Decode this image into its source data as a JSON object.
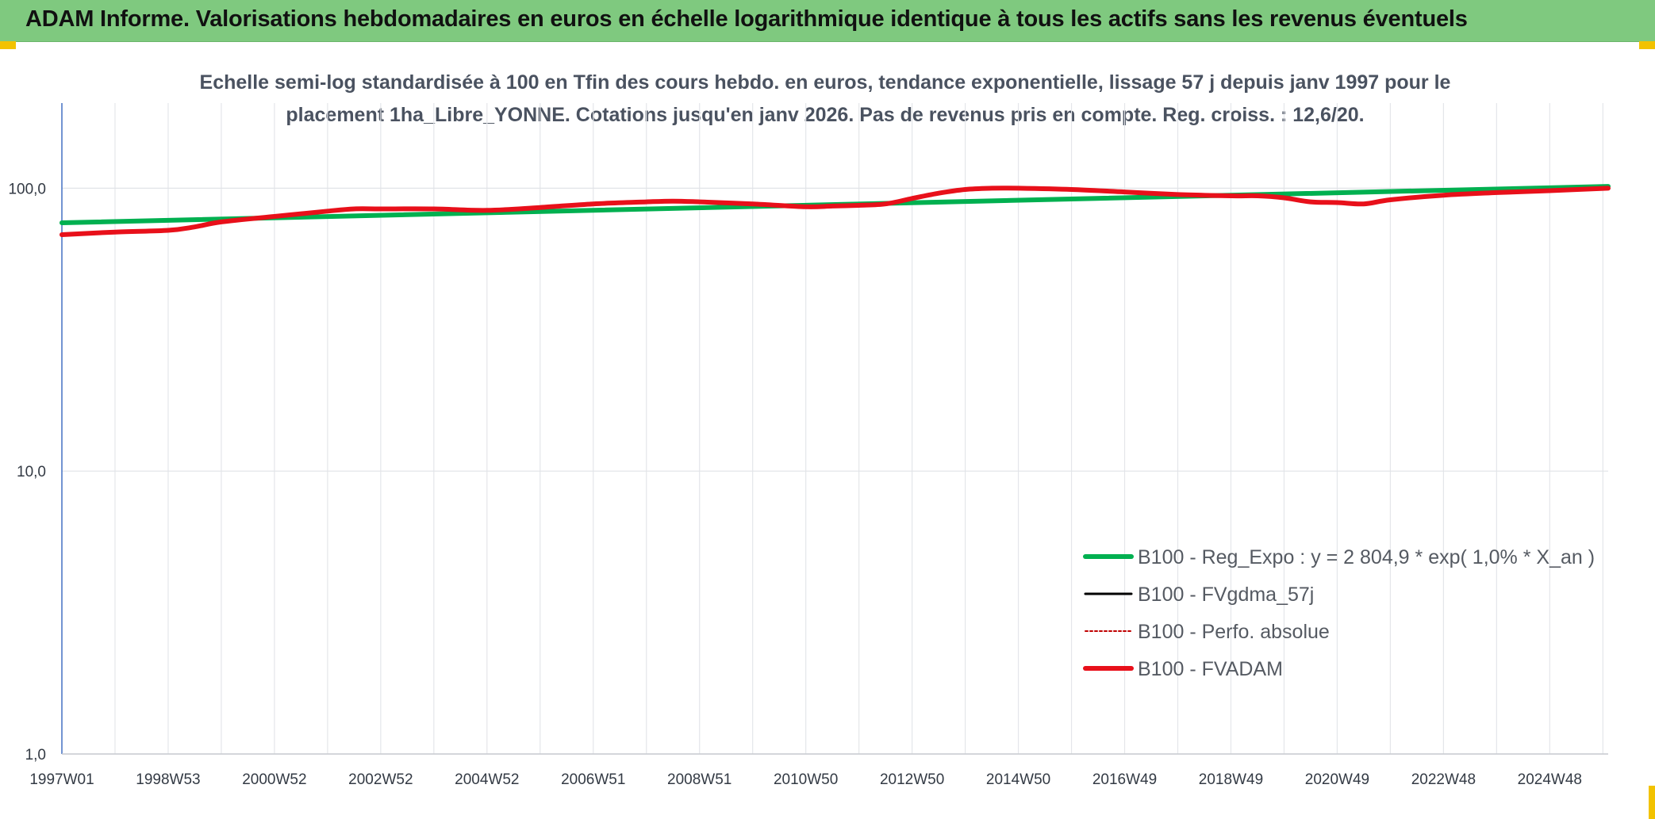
{
  "banner": {
    "title": "ADAM Informe. Valorisations hebdomadaires en euros en échelle logarithmique identique à tous les actifs sans les revenus éventuels",
    "color": "#7fc97f"
  },
  "chart_data": {
    "type": "line",
    "title_lines": [
      "Echelle semi-log standardisée à 100 en Tfin des cours hebdo. en euros, tendance exponentielle, lissage 57 j depuis janv 1997 pour le",
      "placement 1ha_Libre_YONNE. Cotations jusqu'en janv 2026. Pas de revenus pris en compte. Reg. croiss. : 12,6/20."
    ],
    "y_scale": "log",
    "ylim": [
      1,
      200
    ],
    "y_ticks": [
      1,
      10,
      100
    ],
    "y_tick_labels": [
      "1,0",
      "10,0",
      "100,0"
    ],
    "x_range": [
      1997.0,
      2026.1
    ],
    "x_ticks": [
      1997.0,
      1999.0,
      2001.0,
      2003.0,
      2005.0,
      2007.0,
      2009.0,
      2011.0,
      2013.0,
      2015.0,
      2017.0,
      2019.0,
      2021.0,
      2023.0,
      2025.0
    ],
    "x_tick_labels": [
      "1997W01",
      "1998W53",
      "2000W52",
      "2002W52",
      "2004W52",
      "2006W51",
      "2008W51",
      "2010W50",
      "2012W50",
      "2014W50",
      "2016W49",
      "2018W49",
      "2020W49",
      "2022W48",
      "2024W48"
    ],
    "grid": true,
    "legend_position": "lower-right",
    "series": [
      {
        "name": "B100 - Reg_Expo : y = 2 804,9 * exp( 1,0% *  X_an )",
        "color": "#00b050",
        "style": "solid-thick",
        "x": [
          1997.0,
          2026.1
        ],
        "y": [
          75.5,
          101.5
        ]
      },
      {
        "name": "B100 - FVgdma_57j",
        "color": "#000000",
        "style": "solid-thin",
        "x": [],
        "y": []
      },
      {
        "name": "B100 - Perfo. absolue",
        "color": "#c00000",
        "style": "dotted",
        "x": [],
        "y": []
      },
      {
        "name": "B100 - FVADAM",
        "color": "#e8101a",
        "style": "solid-thick",
        "x": [
          1997.0,
          1998.0,
          1999.0,
          1999.5,
          2000.0,
          2001.0,
          2002.0,
          2002.5,
          2003.0,
          2004.0,
          2005.0,
          2006.0,
          2007.0,
          2008.0,
          2008.5,
          2009.0,
          2010.0,
          2011.0,
          2011.5,
          2012.0,
          2012.5,
          2013.0,
          2013.5,
          2014.0,
          2014.5,
          2015.0,
          2016.0,
          2017.0,
          2018.0,
          2019.0,
          2019.5,
          2020.0,
          2020.5,
          2021.0,
          2021.5,
          2022.0,
          2023.0,
          2024.0,
          2025.0,
          2026.1
        ],
        "y": [
          68.5,
          70.0,
          71.0,
          73.0,
          76.0,
          79.5,
          83.0,
          84.5,
          84.5,
          84.5,
          83.5,
          85.5,
          88.0,
          89.5,
          90.0,
          89.5,
          88.0,
          86.0,
          86.5,
          87.0,
          88.0,
          92.0,
          96.0,
          99.0,
          100.0,
          100.0,
          99.0,
          97.0,
          95.0,
          94.0,
          94.0,
          92.5,
          89.5,
          89.0,
          88.0,
          91.0,
          94.5,
          96.5,
          98.0,
          100.0
        ]
      }
    ]
  }
}
